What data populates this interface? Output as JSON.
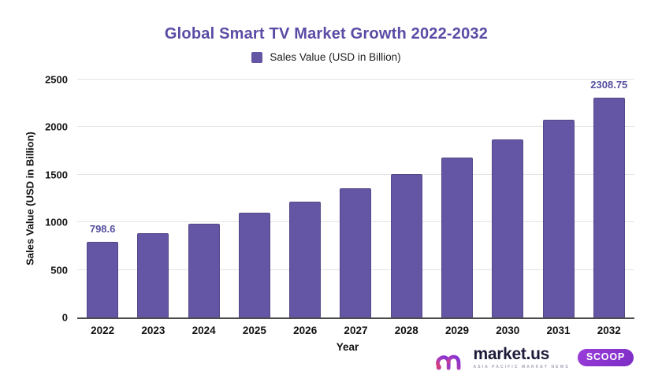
{
  "title": "Global Smart TV Market Growth 2022-2032",
  "legend": {
    "label": "Sales Value (USD in Billion)"
  },
  "chart_data": {
    "type": "bar",
    "title": "Global Smart TV Market Growth 2022-2032",
    "xlabel": "Year",
    "ylabel": "Sales Value (USD in Billion)",
    "categories": [
      "2022",
      "2023",
      "2024",
      "2025",
      "2026",
      "2027",
      "2028",
      "2029",
      "2030",
      "2031",
      "2032"
    ],
    "values": [
      798.6,
      888,
      988,
      1098,
      1221,
      1358,
      1510,
      1679,
      1868,
      2077,
      2308.75
    ],
    "value_labels": [
      "798.6",
      "",
      "",
      "",
      "",
      "",
      "",
      "",
      "",
      "",
      "2308.75"
    ],
    "ylim": [
      0,
      2500
    ],
    "yticks": [
      0,
      500,
      1000,
      1500,
      2000,
      2500
    ],
    "grid": true,
    "legend_position": "top",
    "bar_color": "#6456a4"
  },
  "colors": {
    "bar": "#6456a4",
    "bar_border": "#554787",
    "title": "#5b4ba5",
    "data_label": "#554f9e",
    "gridline": "#e4e4e4",
    "axis_line": "#4b4b4b",
    "tick_text": "#161616"
  },
  "brand": {
    "name": "market.us",
    "tagline": "ASIA PACIFIC MARKET NEWS",
    "badge": "SCOOP"
  }
}
